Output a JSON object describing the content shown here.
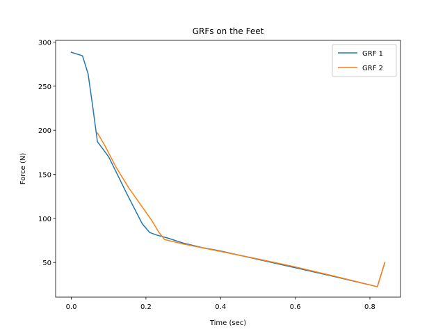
{
  "chart_data": {
    "type": "line",
    "title": "GRFs on the Feet",
    "xlabel": "Time (sec)",
    "ylabel": "Force (N)",
    "xlim": [
      -0.042,
      0.882
    ],
    "ylim": [
      10.7,
      302.0
    ],
    "xticks": [
      0.0,
      0.2,
      0.4,
      0.6,
      0.8
    ],
    "xtick_labels": [
      "0.0",
      "0.2",
      "0.4",
      "0.6",
      "0.8"
    ],
    "yticks": [
      50,
      100,
      150,
      200,
      250,
      300
    ],
    "ytick_labels": [
      "50",
      "100",
      "150",
      "200",
      "250",
      "300"
    ],
    "grid": false,
    "legend": "top-right",
    "series": [
      {
        "name": "GRF 1",
        "color": "#1f77b4",
        "x": [
          0.0,
          0.03,
          0.045,
          0.058,
          0.07,
          0.1,
          0.15,
          0.19,
          0.21,
          0.23,
          0.26,
          0.3,
          0.35,
          0.4,
          0.5,
          0.6,
          0.7,
          0.82,
          0.84
        ],
        "y": [
          288.5,
          284.5,
          264.0,
          225.0,
          187.0,
          170.0,
          127.0,
          94.0,
          84.0,
          81.0,
          77.5,
          72.0,
          67.0,
          63.0,
          53.5,
          44.0,
          34.5,
          22.5,
          50.0
        ]
      },
      {
        "name": "GRF 2",
        "color": "#ff7f0e",
        "x": [
          0.07,
          0.09,
          0.12,
          0.155,
          0.19,
          0.215,
          0.235,
          0.25,
          0.3,
          0.4,
          0.5,
          0.6,
          0.7,
          0.82,
          0.84
        ],
        "y": [
          197.0,
          182.5,
          158.0,
          134.0,
          113.0,
          98.0,
          84.0,
          76.0,
          71.0,
          62.5,
          54.0,
          45.0,
          35.0,
          22.5,
          50.0
        ]
      }
    ]
  }
}
